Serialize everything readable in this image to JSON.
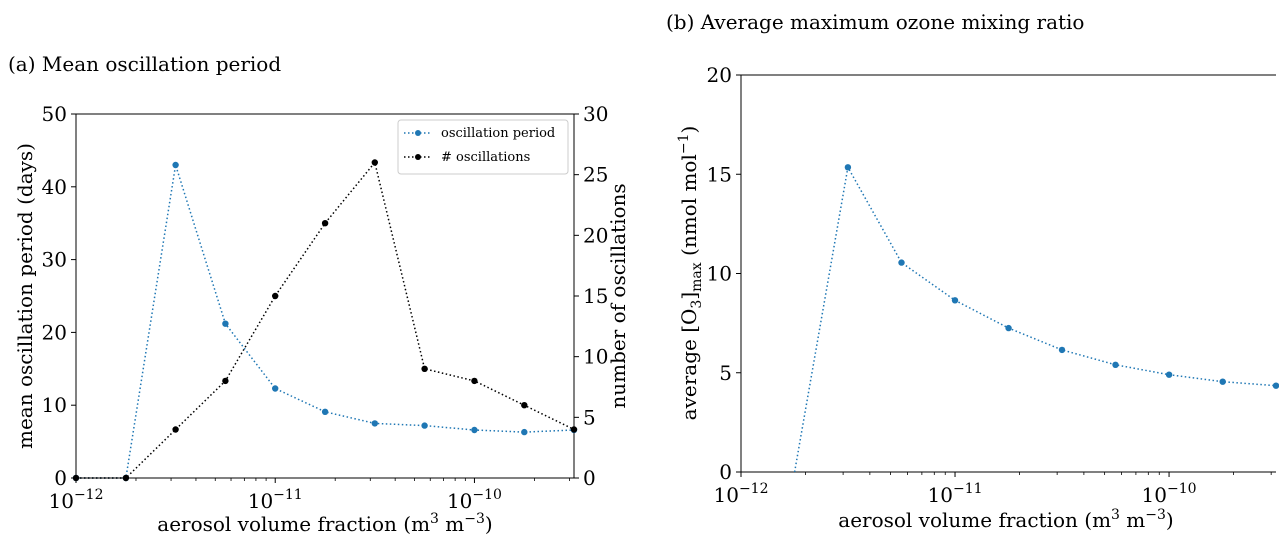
{
  "colors": {
    "blue": "#1f77b4",
    "black": "#000000"
  },
  "chart_data": [
    {
      "type": "line",
      "title": "(a) Mean oscillation period",
      "xscale": "log",
      "xlim": [
        1e-12,
        3.16e-10
      ],
      "x_ticks": [
        {
          "value": 1e-12,
          "label": "10−12"
        },
        {
          "value": 1e-11,
          "label": "10−11"
        },
        {
          "value": 1e-10,
          "label": "10−10"
        }
      ],
      "xlabel": "aerosol volume fraction (m3 m−3)",
      "ylabel": "mean oscillation period (days)",
      "ylim": [
        0,
        50
      ],
      "y_ticks": [
        "0",
        "10",
        "20",
        "30",
        "40",
        "50"
      ],
      "y2label": "number of oscillations",
      "y2lim": [
        0,
        30
      ],
      "y2_ticks": [
        "0",
        "5",
        "10",
        "15",
        "20",
        "25",
        "30"
      ],
      "grid": false,
      "legend_position": "top-right",
      "series": [
        {
          "name": "oscillation period",
          "axis": "left",
          "color": "#1f77b4",
          "x": [
            1e-12,
            1.78e-12,
            3.16e-12,
            5.62e-12,
            1e-11,
            1.78e-11,
            3.16e-11,
            5.62e-11,
            1e-10,
            1.78e-10,
            3.16e-10
          ],
          "y": [
            0,
            0,
            43,
            21.2,
            12.3,
            9.1,
            7.5,
            7.2,
            6.6,
            6.3,
            6.6
          ]
        },
        {
          "name": "# oscillations",
          "axis": "right",
          "color": "#000000",
          "x": [
            1e-12,
            1.78e-12,
            3.16e-12,
            5.62e-12,
            1e-11,
            1.78e-11,
            3.16e-11,
            5.62e-11,
            1e-10,
            1.78e-10,
            3.16e-10
          ],
          "y": [
            0,
            0,
            4,
            8,
            15,
            21,
            26,
            9,
            8,
            6,
            4
          ]
        }
      ]
    },
    {
      "type": "line",
      "title": "(b) Average maximum ozone mixing ratio",
      "xscale": "log",
      "xlim": [
        1e-12,
        3.16e-10
      ],
      "x_ticks": [
        {
          "value": 1e-12,
          "label": "10−12"
        },
        {
          "value": 1e-11,
          "label": "10−11"
        },
        {
          "value": 1e-10,
          "label": "10−10"
        }
      ],
      "xlabel": "aerosol volume fraction (m3 m−3)",
      "ylabel": "average [O3]max (nmol mol−1)",
      "ylim": [
        0,
        20
      ],
      "y_ticks": [
        "0",
        "5",
        "10",
        "15",
        "20"
      ],
      "grid": false,
      "series": [
        {
          "color": "#1f77b4",
          "x": [
            1.78e-12,
            3.16e-12,
            5.62e-12,
            1e-11,
            1.78e-11,
            3.16e-11,
            5.62e-11,
            1e-10,
            1.78e-10,
            3.16e-10
          ],
          "y": [
            0,
            15.35,
            10.55,
            8.65,
            7.25,
            6.15,
            5.4,
            4.9,
            4.55,
            4.35
          ],
          "markers": [
            false,
            true,
            true,
            true,
            true,
            true,
            true,
            true,
            true,
            true
          ]
        }
      ]
    }
  ]
}
